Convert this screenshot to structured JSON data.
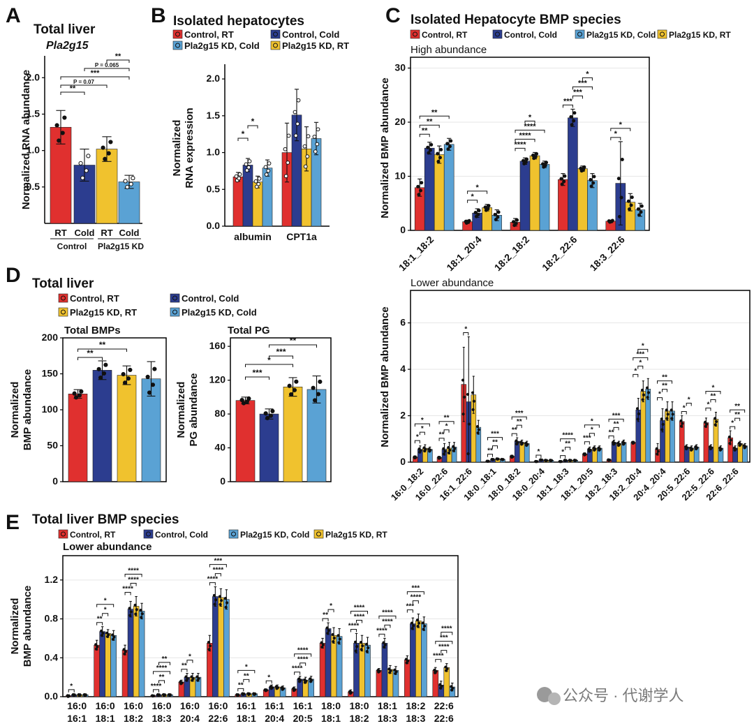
{
  "colors": {
    "red": "#e0302f",
    "navy": "#2c3d8f",
    "yellow": "#f0c22e",
    "lightblue": "#5aa2d4",
    "grid": "#e6e6e6"
  },
  "watermark": "公众号 · 代谢学人",
  "chart_data": [
    {
      "id": "A",
      "panel": "A",
      "type": "bar",
      "title": "Total liver",
      "subtitle": "Pla2g15",
      "ylabel": "Normalized RNA abundance",
      "ylim": [
        0.0,
        2.3
      ],
      "yticks": [
        0.5,
        1.0,
        1.5,
        2.0
      ],
      "tick_labels": [
        "0.5",
        "1.0",
        "1.5",
        "2.0"
      ],
      "categories": [
        "RT",
        "Cold",
        "RT",
        "Cold"
      ],
      "group_labels": [
        "Control",
        "Pla2g15 KD"
      ],
      "colors": [
        "red",
        "navy",
        "yellow",
        "lightblue"
      ],
      "values": [
        1.32,
        0.8,
        1.02,
        0.57
      ],
      "errors": [
        0.23,
        0.22,
        0.17,
        0.09
      ],
      "significance": [
        "**",
        "P = 0.065",
        "***",
        "P = 0.07",
        "**"
      ],
      "brackets": [
        [
          2,
          3,
          "**"
        ],
        [
          1,
          3,
          "P = 0.065"
        ],
        [
          0,
          3,
          "***"
        ],
        [
          0,
          2,
          "P = 0.07"
        ],
        [
          0,
          1,
          "**"
        ]
      ]
    },
    {
      "id": "B",
      "panel": "B",
      "type": "bar",
      "title": "Isolated hepatocytes",
      "ylabel": "Normalized RNA expression",
      "ylim": [
        0.0,
        2.2
      ],
      "yticks": [
        0.0,
        0.5,
        1.0,
        1.5,
        2.0
      ],
      "tick_labels": [
        "0.0",
        "0.5",
        "1.0",
        "1.5",
        "2.0"
      ],
      "categories": [
        "albumin",
        "CPT1a"
      ],
      "legend": [
        "Control, RT",
        "Control, Cold",
        "Pla2g15 KD, Cold",
        "Pla2g15 KD, RT"
      ],
      "legend_colors": [
        "red",
        "navy",
        "lightblue",
        "yellow"
      ],
      "series_order": [
        "red",
        "navy",
        "yellow",
        "lightblue"
      ],
      "values": [
        [
          0.67,
          0.83,
          0.6,
          0.79
        ],
        [
          1.0,
          1.51,
          1.05,
          1.19
        ]
      ],
      "errors": [
        [
          0.06,
          0.09,
          0.08,
          0.11
        ],
        [
          0.4,
          0.35,
          0.3,
          0.22
        ]
      ],
      "brackets": [
        [
          0,
          0,
          1,
          "*"
        ],
        [
          0,
          1,
          2,
          "*"
        ]
      ]
    },
    {
      "id": "C1",
      "panel": "C",
      "type": "bar",
      "title": "Isolated Hepatocyte BMP species",
      "subtitle": "High abundance",
      "ylabel": "Normalized BMP abundance",
      "ylim": [
        0,
        32
      ],
      "yticks": [
        0,
        10,
        20,
        30
      ],
      "tick_labels": [
        "0",
        "10",
        "20",
        "30"
      ],
      "categories": [
        "18:1_18:2",
        "18:1_20:4",
        "18:2_18:2",
        "18:2_22:6",
        "18:3_22:6"
      ],
      "legend": [
        "Control, RT",
        "Control, Cold",
        "Pla2g15 KD, Cold",
        "Pla2g15 KD, RT"
      ],
      "legend_colors": [
        "red",
        "navy",
        "lightblue",
        "yellow"
      ],
      "series_order": [
        "red",
        "navy",
        "yellow",
        "lightblue"
      ],
      "values": [
        [
          7.9,
          15.2,
          14.0,
          15.9
        ],
        [
          1.6,
          3.2,
          4.2,
          2.8
        ],
        [
          1.5,
          12.8,
          13.8,
          12.2
        ],
        [
          9.4,
          20.8,
          11.4,
          9.2
        ],
        [
          1.7,
          8.7,
          5.2,
          3.8
        ]
      ],
      "errors": [
        [
          1.6,
          1.1,
          1.6,
          1.1
        ],
        [
          0.3,
          0.8,
          0.6,
          1.0
        ],
        [
          0.7,
          0.6,
          0.6,
          0.6
        ],
        [
          1.1,
          1.6,
          0.5,
          1.3
        ],
        [
          0.2,
          7.7,
          1.6,
          1.2
        ]
      ],
      "brackets": [
        [
          0,
          0,
          1,
          "**"
        ],
        [
          0,
          0,
          2,
          "**"
        ],
        [
          0,
          0,
          3,
          "**"
        ],
        [
          1,
          0,
          1,
          "*"
        ],
        [
          1,
          0,
          2,
          "*"
        ],
        [
          2,
          0,
          1,
          "****"
        ],
        [
          2,
          0,
          2,
          "****"
        ],
        [
          2,
          0,
          3,
          "****"
        ],
        [
          2,
          1,
          2,
          "*"
        ],
        [
          3,
          0,
          1,
          "***"
        ],
        [
          3,
          1,
          2,
          "***"
        ],
        [
          3,
          1,
          3,
          "***"
        ],
        [
          3,
          2,
          3,
          "*"
        ],
        [
          4,
          0,
          1,
          "*"
        ],
        [
          4,
          0,
          2,
          "*"
        ]
      ]
    },
    {
      "id": "C2",
      "panel": "C",
      "type": "bar",
      "subtitle": "Lower abundance",
      "ylabel": "Normalized BMP abundance",
      "ylim": [
        0,
        7.4
      ],
      "yticks": [
        0,
        2,
        4,
        6
      ],
      "tick_labels": [
        "0",
        "2",
        "4",
        "6"
      ],
      "categories": [
        "16:0_18:2",
        "16:0_22:6",
        "16:1_22:6",
        "18:0_18:1",
        "18:0_18:2",
        "18:0_20:4",
        "18:1_18:3",
        "18:1_20:5",
        "18:2_18:3",
        "18:2_20:4",
        "20:4_20:4",
        "20:5_22:6",
        "22:5_22:6",
        "22:6_22:6"
      ],
      "series_order": [
        "red",
        "navy",
        "yellow",
        "lightblue"
      ],
      "values": [
        [
          0.22,
          0.55,
          0.6,
          0.55
        ],
        [
          0.2,
          0.55,
          0.6,
          0.65
        ],
        [
          3.35,
          2.6,
          2.9,
          1.5
        ],
        [
          0.04,
          0.12,
          0.14,
          0.12
        ],
        [
          0.25,
          0.9,
          0.85,
          0.8
        ],
        [
          0.03,
          0.1,
          0.08,
          0.08
        ],
        [
          0.03,
          0.08,
          0.08,
          0.08
        ],
        [
          0.35,
          0.55,
          0.6,
          0.6
        ],
        [
          0.1,
          0.85,
          0.8,
          0.85
        ],
        [
          0.85,
          2.25,
          3.05,
          3.15
        ],
        [
          0.55,
          1.8,
          2.2,
          2.2
        ],
        [
          1.75,
          0.65,
          0.6,
          0.65
        ],
        [
          1.7,
          0.65,
          1.85,
          0.6
        ],
        [
          1.05,
          0.6,
          0.8,
          0.7
        ]
      ],
      "errors": [
        [
          0.05,
          0.15,
          0.15,
          0.1
        ],
        [
          0.05,
          0.25,
          0.25,
          0.2
        ],
        [
          1.6,
          2.8,
          0.8,
          0.3
        ],
        [
          0.01,
          0.02,
          0.02,
          0.02
        ],
        [
          0.05,
          0.15,
          0.1,
          0.1
        ],
        [
          0.01,
          0.02,
          0.02,
          0.02
        ],
        [
          0.01,
          0.02,
          0.02,
          0.02
        ],
        [
          0.05,
          0.1,
          0.1,
          0.1
        ],
        [
          0.03,
          0.1,
          0.1,
          0.1
        ],
        [
          0.05,
          0.5,
          0.45,
          0.45
        ],
        [
          0.25,
          0.5,
          0.4,
          0.4
        ],
        [
          0.25,
          0.1,
          0.1,
          0.1
        ],
        [
          0.2,
          0.1,
          0.3,
          0.1
        ],
        [
          0.3,
          0.1,
          0.1,
          0.1
        ]
      ],
      "labels": [
        [
          "*",
          "*",
          "*"
        ],
        [
          "**",
          "*",
          "**"
        ],
        [
          "*"
        ],
        [
          "**",
          "**",
          "***"
        ],
        [
          "**",
          "**",
          "***"
        ],
        [
          "*"
        ],
        [
          "*",
          "**",
          "****"
        ],
        [
          "***",
          "*",
          "*"
        ],
        [
          "**",
          "**",
          "***"
        ],
        [
          "*",
          "*",
          "***",
          "*"
        ],
        [
          "*",
          "**",
          "**"
        ],
        [
          "*",
          "*"
        ],
        [
          "*",
          "**",
          "*"
        ],
        [
          "*",
          "**",
          "**"
        ]
      ]
    },
    {
      "id": "D1",
      "panel": "D",
      "type": "bar",
      "title": "Total liver",
      "subtitle": "Total BMPs",
      "ylabel": "Normalized BMP abundance",
      "ylim": [
        0,
        200
      ],
      "ymin_axis": 0,
      "yticks": [
        0,
        50,
        100,
        150,
        200
      ],
      "tick_labels": [
        "0",
        "50",
        "100",
        "150",
        "200"
      ],
      "legend": [
        "Control, RT",
        "Control, Cold",
        "Pla2g15 KD, RT",
        "Pla2g15 KD, Cold"
      ],
      "legend_colors": [
        "red",
        "navy",
        "yellow",
        "lightblue"
      ],
      "series_order": [
        "red",
        "navy",
        "yellow",
        "lightblue"
      ],
      "values": [
        122,
        155,
        148,
        143
      ],
      "errors": [
        6,
        13,
        13,
        24
      ],
      "brackets": [
        [
          0,
          1,
          "**"
        ],
        [
          0,
          2,
          "**"
        ]
      ]
    },
    {
      "id": "D2",
      "panel": "D",
      "type": "bar",
      "subtitle": "Total PG",
      "ylabel": "Normalized PG abundance",
      "ylim": [
        0,
        170
      ],
      "yticks": [
        0,
        40,
        80,
        120,
        160
      ],
      "tick_labels": [
        "0",
        "40",
        "80",
        "120",
        "160"
      ],
      "series_order": [
        "red",
        "navy",
        "yellow",
        "lightblue"
      ],
      "values": [
        96,
        80,
        112,
        109
      ],
      "errors": [
        4,
        6,
        11,
        16
      ],
      "brackets": [
        [
          0,
          1,
          "***"
        ],
        [
          0,
          2,
          "*"
        ],
        [
          1,
          2,
          "***"
        ],
        [
          1,
          3,
          "**"
        ]
      ]
    },
    {
      "id": "E",
      "panel": "E",
      "type": "bar",
      "title": "Total liver BMP species",
      "subtitle": "Lower abundance",
      "ylabel": "Normalized BMP abundance",
      "ylim": [
        0,
        1.45
      ],
      "yticks": [
        0.0,
        0.4,
        0.8,
        1.2
      ],
      "tick_labels": [
        "0.0",
        "0.4",
        "0.8",
        "1.2"
      ],
      "categories_top": [
        "16:0",
        "16:0",
        "16:0",
        "16:0",
        "16:0",
        "16:0",
        "16:1",
        "16:1",
        "16:1",
        "18:0",
        "18:0",
        "18:1",
        "18:2",
        "22:6"
      ],
      "categories_bottom": [
        "16:1",
        "18:1",
        "18:2",
        "18:3",
        "20:4",
        "22:6",
        "18:1",
        "20:4",
        "20:5",
        "18:1",
        "18:2",
        "18:3",
        "18:3",
        "22:6"
      ],
      "legend": [
        "Control, RT",
        "Control, Cold",
        "Pla2g15 KD, Cold",
        "Pla2g15 KD, RT"
      ],
      "legend_colors": [
        "red",
        "navy",
        "lightblue",
        "yellow"
      ],
      "series_order": [
        "red",
        "navy",
        "yellow",
        "lightblue"
      ],
      "values": [
        [
          0.01,
          0.02,
          0.02,
          0.02
        ],
        [
          0.53,
          0.67,
          0.65,
          0.63
        ],
        [
          0.48,
          0.9,
          0.93,
          0.88
        ],
        [
          0.01,
          0.02,
          0.02,
          0.02
        ],
        [
          0.15,
          0.2,
          0.2,
          0.2
        ],
        [
          0.55,
          1.03,
          1.02,
          1.0
        ],
        [
          0.02,
          0.03,
          0.03,
          0.03
        ],
        [
          0.07,
          0.1,
          0.1,
          0.09
        ],
        [
          0.08,
          0.18,
          0.17,
          0.18
        ],
        [
          0.55,
          0.7,
          0.63,
          0.62
        ],
        [
          0.05,
          0.55,
          0.55,
          0.53
        ],
        [
          0.27,
          0.55,
          0.28,
          0.27
        ],
        [
          0.38,
          0.75,
          0.78,
          0.75
        ],
        [
          0.27,
          0.12,
          0.3,
          0.1
        ]
      ],
      "errors": [
        [
          0.01,
          0.01,
          0.01,
          0.01
        ],
        [
          0.05,
          0.05,
          0.04,
          0.05
        ],
        [
          0.05,
          0.08,
          0.1,
          0.08
        ],
        [
          0.005,
          0.01,
          0.01,
          0.01
        ],
        [
          0.02,
          0.04,
          0.04,
          0.04
        ],
        [
          0.08,
          0.1,
          0.09,
          0.1
        ],
        [
          0.01,
          0.01,
          0.01,
          0.01
        ],
        [
          0.01,
          0.02,
          0.02,
          0.02
        ],
        [
          0.02,
          0.03,
          0.03,
          0.03
        ],
        [
          0.05,
          0.06,
          0.08,
          0.08
        ],
        [
          0.02,
          0.1,
          0.08,
          0.08
        ],
        [
          0.02,
          0.05,
          0.04,
          0.04
        ],
        [
          0.04,
          0.06,
          0.07,
          0.07
        ],
        [
          0.03,
          0.04,
          0.04,
          0.04
        ]
      ],
      "labels": [
        [
          "*"
        ],
        [
          "**",
          "*",
          "*"
        ],
        [
          "****",
          "****",
          "****"
        ],
        [
          "****",
          "**",
          "****",
          "**"
        ],
        [
          "**",
          "*"
        ],
        [
          "****",
          "****",
          "***"
        ],
        [
          "**",
          "**",
          "*"
        ],
        [
          "*"
        ],
        [
          "****",
          "****",
          "****"
        ],
        [
          "**",
          "*"
        ],
        [
          "****",
          "****",
          "****"
        ],
        [
          "****",
          "****",
          "****"
        ],
        [
          "***",
          "****",
          "***"
        ],
        [
          "****",
          "****",
          "***",
          "****"
        ]
      ]
    }
  ]
}
